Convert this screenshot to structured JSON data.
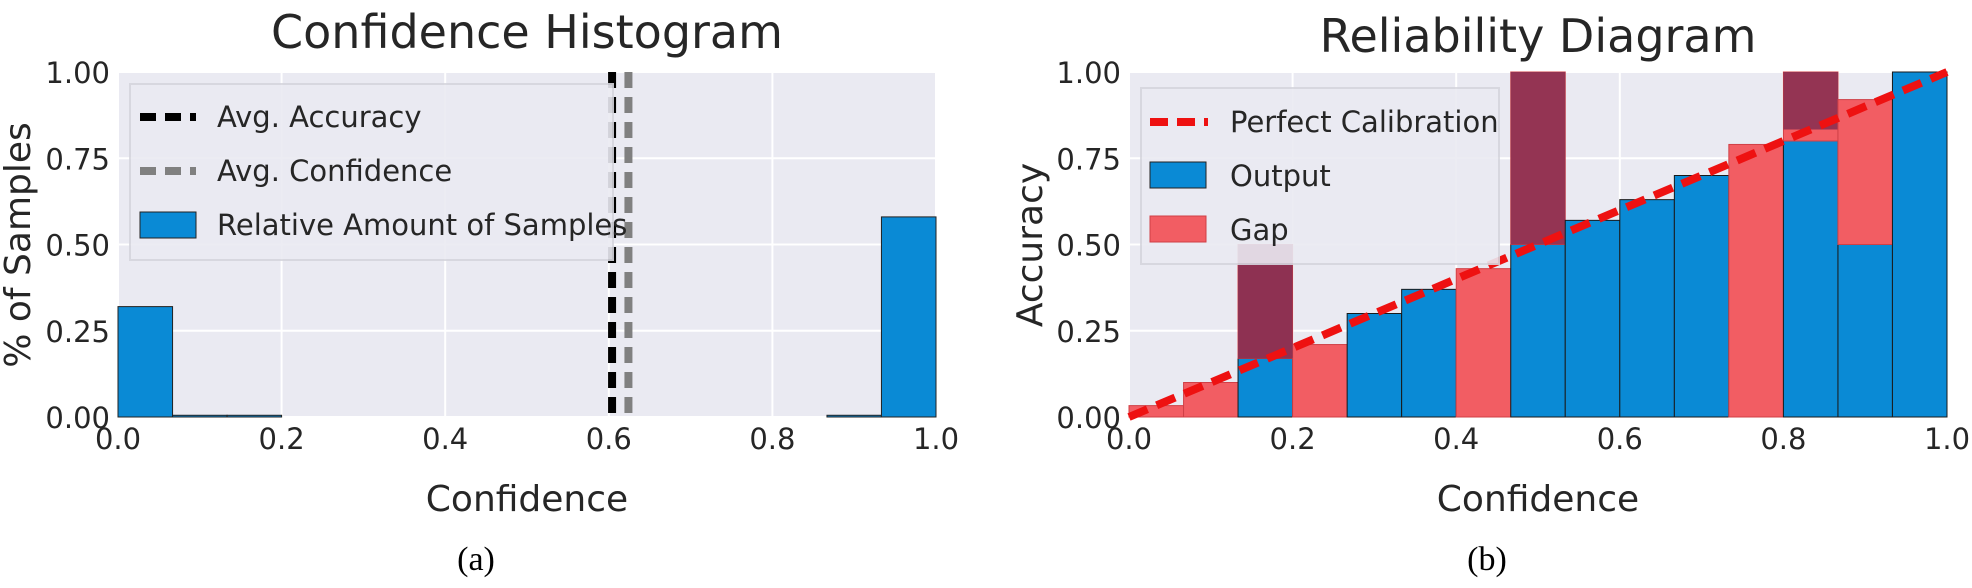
{
  "colors": {
    "plot_bg": "#eaeaf2",
    "grid": "#ffffff",
    "output": "#0a8ad5",
    "gap": "#f25d63",
    "overlap": "#8e3152",
    "avg_accuracy": "#000000",
    "avg_confidence": "#808080",
    "perfect": "#ee1111"
  },
  "chart_data": [
    {
      "type": "bar",
      "title": "Confidence Histogram",
      "xlabel": "Confidence",
      "ylabel": "% of Samples",
      "caption": "(a)",
      "xlim": [
        0,
        1
      ],
      "ylim": [
        0,
        1
      ],
      "xticks": [
        "0.0",
        "0.2",
        "0.4",
        "0.6",
        "0.8",
        "1.0"
      ],
      "yticks": [
        "0.00",
        "0.25",
        "0.50",
        "0.75",
        "1.00"
      ],
      "grid": true,
      "bin_edges": [
        0,
        0.0667,
        0.1333,
        0.2,
        0.2667,
        0.3333,
        0.4,
        0.4667,
        0.5333,
        0.6,
        0.6667,
        0.7333,
        0.8,
        0.8667,
        0.9333,
        1.0
      ],
      "values": [
        0.32,
        0.005,
        0.005,
        0,
        0,
        0,
        0,
        0,
        0,
        0,
        0,
        0,
        0,
        0.005,
        0.58
      ],
      "avg_accuracy": 0.604,
      "avg_confidence": 0.624,
      "legend": {
        "position": "upper-left",
        "entries": [
          "Avg. Accuracy",
          "Avg. Confidence",
          "Relative Amount of Samples"
        ]
      }
    },
    {
      "type": "bar",
      "title": "Reliability Diagram",
      "xlabel": "Confidence",
      "ylabel": "Accuracy",
      "caption": "(b)",
      "xlim": [
        0,
        1
      ],
      "ylim": [
        0,
        1
      ],
      "xticks": [
        "0.0",
        "0.2",
        "0.4",
        "0.6",
        "0.8",
        "1.0"
      ],
      "yticks": [
        "0.00",
        "0.25",
        "0.50",
        "0.75",
        "1.00"
      ],
      "grid": true,
      "bin_edges": [
        0,
        0.0667,
        0.1333,
        0.2,
        0.2667,
        0.3333,
        0.4,
        0.4667,
        0.5333,
        0.6,
        0.6667,
        0.7333,
        0.8,
        0.8667,
        0.9333,
        1.0
      ],
      "bin_centers": [
        0.0333,
        0.1,
        0.1667,
        0.2333,
        0.3,
        0.3667,
        0.4333,
        0.5,
        0.5667,
        0.6333,
        0.7,
        0.7667,
        0.8333,
        0.9,
        0.9667
      ],
      "series": [
        {
          "name": "Output",
          "values": [
            0.0,
            0.0,
            0.17,
            0.0,
            0.3,
            0.37,
            0.0,
            0.5,
            0.57,
            0.63,
            0.7,
            0.0,
            0.8,
            0.5,
            1.0
          ]
        },
        {
          "name": "Gap",
          "values": [
            0.033,
            0.1,
            0.5,
            0.21,
            0.3,
            0.37,
            0.43,
            1.0,
            0.57,
            0.63,
            0.7,
            0.79,
            1.0,
            0.92,
            0.97
          ]
        }
      ],
      "perfect_calibration": [
        [
          0,
          0
        ],
        [
          1,
          1
        ]
      ],
      "legend": {
        "position": "upper-left",
        "entries": [
          "Perfect Calibration",
          "Output",
          "Gap"
        ]
      }
    }
  ]
}
